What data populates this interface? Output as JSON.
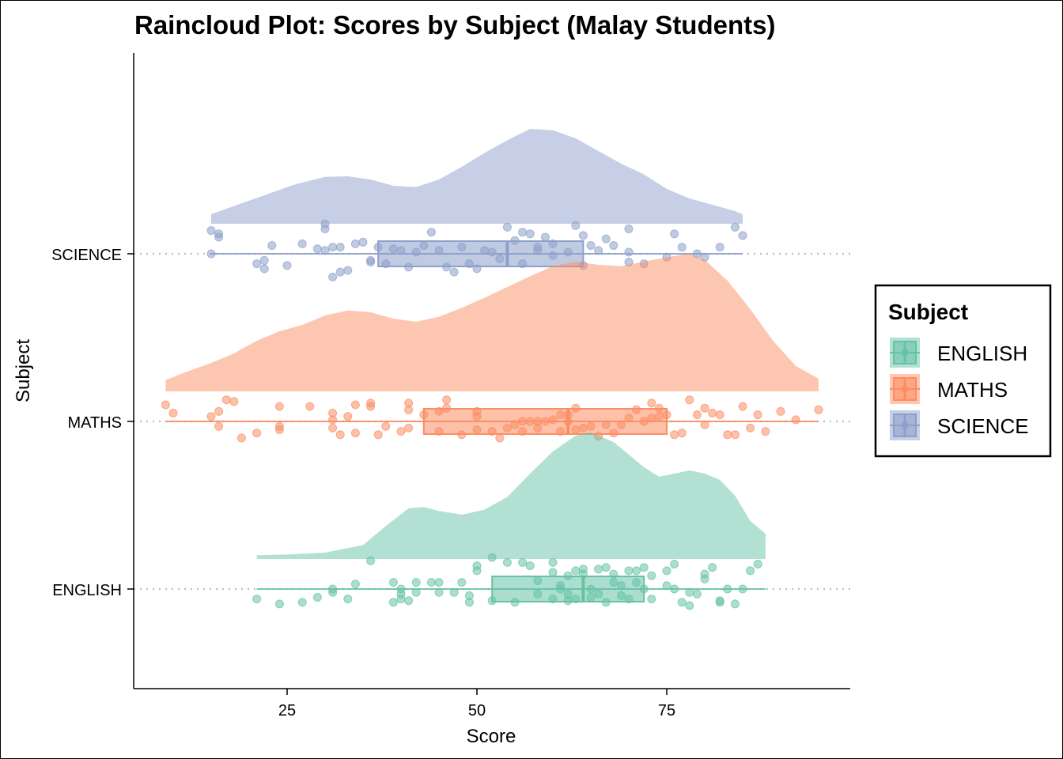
{
  "chart_data": {
    "type": "raincloud",
    "title": "Raincloud Plot: Scores by Subject (Malay Students)",
    "xlabel": "Score",
    "ylabel": "Subject",
    "xlim": [
      5,
      99
    ],
    "x_ticks": [
      25,
      50,
      75
    ],
    "categories": [
      "ENGLISH",
      "MATHS",
      "SCIENCE"
    ],
    "legend": {
      "title": "Subject",
      "position": "right",
      "entries": [
        "ENGLISH",
        "MATHS",
        "SCIENCE"
      ]
    },
    "grid": false,
    "colors": {
      "ENGLISH": "#66c2a5",
      "MATHS": "#fc8d62",
      "SCIENCE": "#8da0cb"
    },
    "series": [
      {
        "name": "ENGLISH",
        "min": 21,
        "q1": 52,
        "median": 64,
        "q3": 72,
        "max": 88,
        "density": [
          [
            21,
            0.06
          ],
          [
            25,
            0.07
          ],
          [
            30,
            0.1
          ],
          [
            35,
            0.22
          ],
          [
            38,
            0.52
          ],
          [
            41,
            0.8
          ],
          [
            43,
            0.82
          ],
          [
            45,
            0.76
          ],
          [
            48,
            0.7
          ],
          [
            51,
            0.78
          ],
          [
            54,
            0.98
          ],
          [
            57,
            1.35
          ],
          [
            60,
            1.7
          ],
          [
            63,
            1.95
          ],
          [
            65,
            2.0
          ],
          [
            68,
            1.85
          ],
          [
            70,
            1.65
          ],
          [
            72,
            1.45
          ],
          [
            74,
            1.3
          ],
          [
            76,
            1.35
          ],
          [
            78,
            1.4
          ],
          [
            80,
            1.35
          ],
          [
            82,
            1.25
          ],
          [
            84,
            1.0
          ],
          [
            86,
            0.6
          ],
          [
            88,
            0.4
          ]
        ],
        "points": [
          [
            21,
            -0.06
          ],
          [
            24,
            -0.09
          ],
          [
            27,
            -0.08
          ],
          [
            29,
            -0.05
          ],
          [
            36,
            0.17
          ],
          [
            31,
            0.0
          ],
          [
            31,
            -0.02
          ],
          [
            33,
            -0.06
          ],
          [
            34,
            0.03
          ],
          [
            39,
            0.04
          ],
          [
            39,
            -0.08
          ],
          [
            40,
            0.0
          ],
          [
            40,
            -0.03
          ],
          [
            40,
            -0.06
          ],
          [
            41,
            -0.07
          ],
          [
            42,
            0.04
          ],
          [
            42,
            -0.02
          ],
          [
            44,
            0.04
          ],
          [
            45,
            0.04
          ],
          [
            45,
            -0.02
          ],
          [
            47,
            -0.02
          ],
          [
            48,
            0.04
          ],
          [
            49,
            -0.08
          ],
          [
            49,
            -0.04
          ],
          [
            50,
            0.14
          ],
          [
            50,
            0.11
          ],
          [
            52,
            0.19
          ],
          [
            52,
            -0.07
          ],
          [
            54,
            0.16
          ],
          [
            55,
            -0.08
          ],
          [
            56,
            0.16
          ],
          [
            57,
            0.14
          ],
          [
            58,
            0.05
          ],
          [
            58,
            -0.03
          ],
          [
            60,
            0.1
          ],
          [
            60,
            -0.06
          ],
          [
            60,
            0.16
          ],
          [
            61,
            0.0
          ],
          [
            61,
            0.02
          ],
          [
            62,
            0.08
          ],
          [
            62,
            -0.07
          ],
          [
            62,
            -0.03
          ],
          [
            63,
            0.11
          ],
          [
            63,
            -0.06
          ],
          [
            64,
            0.12
          ],
          [
            64,
            0.09
          ],
          [
            65,
            -0.05
          ],
          [
            65,
            0.0
          ],
          [
            66,
            0.12
          ],
          [
            66,
            -0.03
          ],
          [
            67,
            0.13
          ],
          [
            67,
            -0.08
          ],
          [
            68,
            0.09
          ],
          [
            68,
            0.04
          ],
          [
            69,
            0.02
          ],
          [
            69,
            -0.04
          ],
          [
            70,
            0.11
          ],
          [
            70,
            -0.06
          ],
          [
            71,
            0.04
          ],
          [
            71,
            0.11
          ],
          [
            72,
            0.13
          ],
          [
            72,
            0.0
          ],
          [
            73,
            -0.06
          ],
          [
            73,
            0.08
          ],
          [
            75,
            0.11
          ],
          [
            75,
            0.02
          ],
          [
            76,
            0.15
          ],
          [
            76,
            0.0
          ],
          [
            77,
            -0.08
          ],
          [
            78,
            -0.02
          ],
          [
            78,
            -0.1
          ],
          [
            79,
            -0.03
          ],
          [
            80,
            0.09
          ],
          [
            80,
            0.06
          ],
          [
            81,
            0.13
          ],
          [
            82,
            -0.07
          ],
          [
            82,
            -0.08
          ],
          [
            83,
            0.0
          ],
          [
            84,
            -0.09
          ],
          [
            85,
            0.0
          ],
          [
            86,
            0.11
          ],
          [
            87,
            0.15
          ]
        ]
      },
      {
        "name": "MATHS",
        "min": 9,
        "q1": 43,
        "median": 62,
        "q3": 75,
        "max": 95,
        "density": [
          [
            9,
            0.18
          ],
          [
            12,
            0.32
          ],
          [
            15,
            0.45
          ],
          [
            18,
            0.6
          ],
          [
            21,
            0.8
          ],
          [
            24,
            0.95
          ],
          [
            27,
            1.05
          ],
          [
            30,
            1.2
          ],
          [
            33,
            1.28
          ],
          [
            36,
            1.25
          ],
          [
            39,
            1.15
          ],
          [
            42,
            1.1
          ],
          [
            45,
            1.18
          ],
          [
            48,
            1.32
          ],
          [
            51,
            1.48
          ],
          [
            54,
            1.65
          ],
          [
            57,
            1.82
          ],
          [
            60,
            1.98
          ],
          [
            63,
            2.05
          ],
          [
            66,
            2.0
          ],
          [
            69,
            1.98
          ],
          [
            72,
            2.05
          ],
          [
            75,
            2.12
          ],
          [
            78,
            2.18
          ],
          [
            80,
            2.08
          ],
          [
            83,
            1.75
          ],
          [
            86,
            1.3
          ],
          [
            89,
            0.8
          ],
          [
            92,
            0.4
          ],
          [
            95,
            0.2
          ]
        ],
        "points": [
          [
            9,
            0.1
          ],
          [
            10,
            0.05
          ],
          [
            15,
            0.03
          ],
          [
            16,
            0.06
          ],
          [
            16,
            -0.03
          ],
          [
            17,
            0.13
          ],
          [
            18,
            0.12
          ],
          [
            19,
            -0.1
          ],
          [
            21,
            -0.07
          ],
          [
            24,
            0.09
          ],
          [
            24,
            -0.03
          ],
          [
            24,
            -0.05
          ],
          [
            28,
            0.09
          ],
          [
            31,
            -0.04
          ],
          [
            31,
            0.05
          ],
          [
            31,
            0.01
          ],
          [
            32,
            -0.08
          ],
          [
            33,
            0.03
          ],
          [
            34,
            0.1
          ],
          [
            34,
            -0.07
          ],
          [
            36,
            0.11
          ],
          [
            36,
            0.09
          ],
          [
            37,
            -0.08
          ],
          [
            38,
            -0.03
          ],
          [
            40,
            -0.06
          ],
          [
            41,
            0.07
          ],
          [
            41,
            0.11
          ],
          [
            41,
            -0.04
          ],
          [
            43,
            0.04
          ],
          [
            45,
            -0.06
          ],
          [
            45,
            0.06
          ],
          [
            46,
            0.08
          ],
          [
            46,
            0.13
          ],
          [
            48,
            -0.08
          ],
          [
            50,
            0.03
          ],
          [
            50,
            0.06
          ],
          [
            50,
            -0.05
          ],
          [
            52,
            -0.06
          ],
          [
            53,
            -0.1
          ],
          [
            54,
            -0.04
          ],
          [
            55,
            -0.02
          ],
          [
            56,
            0.0
          ],
          [
            56,
            -0.06
          ],
          [
            57,
            0.0
          ],
          [
            58,
            0.0
          ],
          [
            58,
            -0.04
          ],
          [
            59,
            0.0
          ],
          [
            60,
            0.01
          ],
          [
            61,
            -0.06
          ],
          [
            61,
            0.04
          ],
          [
            62,
            0.04
          ],
          [
            62,
            0.0
          ],
          [
            63,
            0.08
          ],
          [
            63,
            -0.05
          ],
          [
            64,
            -0.04
          ],
          [
            65,
            -0.03
          ],
          [
            66,
            -0.09
          ],
          [
            67,
            -0.02
          ],
          [
            68,
            -0.07
          ],
          [
            69,
            -0.02
          ],
          [
            70,
            0.02
          ],
          [
            71,
            0.07
          ],
          [
            72,
            0.0
          ],
          [
            73,
            0.02
          ],
          [
            73,
            0.11
          ],
          [
            74,
            0.03
          ],
          [
            74,
            0.08
          ],
          [
            75,
            0.04
          ],
          [
            76,
            -0.08
          ],
          [
            77,
            -0.07
          ],
          [
            78,
            0.13
          ],
          [
            79,
            0.04
          ],
          [
            80,
            0.08
          ],
          [
            80,
            -0.02
          ],
          [
            81,
            0.05
          ],
          [
            82,
            0.04
          ],
          [
            83,
            -0.08
          ],
          [
            84,
            -0.08
          ],
          [
            85,
            0.09
          ],
          [
            86,
            -0.04
          ],
          [
            87,
            0.04
          ],
          [
            88,
            -0.06
          ],
          [
            90,
            0.06
          ],
          [
            92,
            0.01
          ],
          [
            95,
            0.07
          ]
        ]
      },
      {
        "name": "SCIENCE",
        "min": 15,
        "q1": 37,
        "median": 54,
        "q3": 64,
        "max": 85,
        "density": [
          [
            15,
            0.15
          ],
          [
            18,
            0.28
          ],
          [
            22,
            0.45
          ],
          [
            26,
            0.62
          ],
          [
            30,
            0.74
          ],
          [
            33,
            0.75
          ],
          [
            36,
            0.7
          ],
          [
            39,
            0.6
          ],
          [
            42,
            0.58
          ],
          [
            45,
            0.7
          ],
          [
            48,
            0.9
          ],
          [
            51,
            1.12
          ],
          [
            54,
            1.32
          ],
          [
            57,
            1.5
          ],
          [
            60,
            1.48
          ],
          [
            63,
            1.35
          ],
          [
            66,
            1.15
          ],
          [
            69,
            0.95
          ],
          [
            72,
            0.78
          ],
          [
            75,
            0.55
          ],
          [
            78,
            0.4
          ],
          [
            81,
            0.3
          ],
          [
            84,
            0.2
          ],
          [
            85,
            0.15
          ]
        ],
        "points": [
          [
            15,
            0.0
          ],
          [
            15,
            0.14
          ],
          [
            16,
            0.12
          ],
          [
            16,
            0.1
          ],
          [
            21,
            -0.06
          ],
          [
            22,
            -0.04
          ],
          [
            22,
            -0.09
          ],
          [
            23,
            0.05
          ],
          [
            25,
            -0.07
          ],
          [
            27,
            0.06
          ],
          [
            29,
            0.03
          ],
          [
            30,
            0.18
          ],
          [
            30,
            0.15
          ],
          [
            30,
            0.02
          ],
          [
            31,
            -0.14
          ],
          [
            31,
            0.04
          ],
          [
            32,
            -0.11
          ],
          [
            32,
            0.04
          ],
          [
            33,
            -0.1
          ],
          [
            34,
            0.06
          ],
          [
            35,
            0.07
          ],
          [
            36,
            -0.04
          ],
          [
            36,
            -0.05
          ],
          [
            37,
            0.04
          ],
          [
            38,
            -0.06
          ],
          [
            39,
            0.03
          ],
          [
            40,
            0.02
          ],
          [
            41,
            -0.08
          ],
          [
            42,
            0.01
          ],
          [
            43,
            0.05
          ],
          [
            44,
            0.13
          ],
          [
            45,
            0.02
          ],
          [
            46,
            -0.08
          ],
          [
            47,
            -0.11
          ],
          [
            48,
            0.04
          ],
          [
            49,
            -0.06
          ],
          [
            50,
            -0.09
          ],
          [
            51,
            0.02
          ],
          [
            52,
            0.01
          ],
          [
            53,
            -0.03
          ],
          [
            54,
            0.16
          ],
          [
            55,
            0.08
          ],
          [
            56,
            -0.06
          ],
          [
            56,
            0.13
          ],
          [
            57,
            0.12
          ],
          [
            58,
            0.04
          ],
          [
            58,
            0.02
          ],
          [
            59,
            0.1
          ],
          [
            60,
            -0.01
          ],
          [
            60,
            0.06
          ],
          [
            62,
            0.01
          ],
          [
            63,
            0.17
          ],
          [
            64,
            -0.07
          ],
          [
            64,
            0.11
          ],
          [
            65,
            0.05
          ],
          [
            66,
            0.02
          ],
          [
            67,
            0.09
          ],
          [
            68,
            0.05
          ],
          [
            70,
            0.15
          ],
          [
            70,
            0.01
          ],
          [
            70,
            -0.05
          ],
          [
            72,
            -0.06
          ],
          [
            75,
            -0.02
          ],
          [
            76,
            0.12
          ],
          [
            77,
            0.04
          ],
          [
            79,
            0.0
          ],
          [
            80,
            -0.02
          ],
          [
            82,
            0.04
          ],
          [
            84,
            0.16
          ],
          [
            85,
            0.11
          ]
        ]
      }
    ]
  }
}
